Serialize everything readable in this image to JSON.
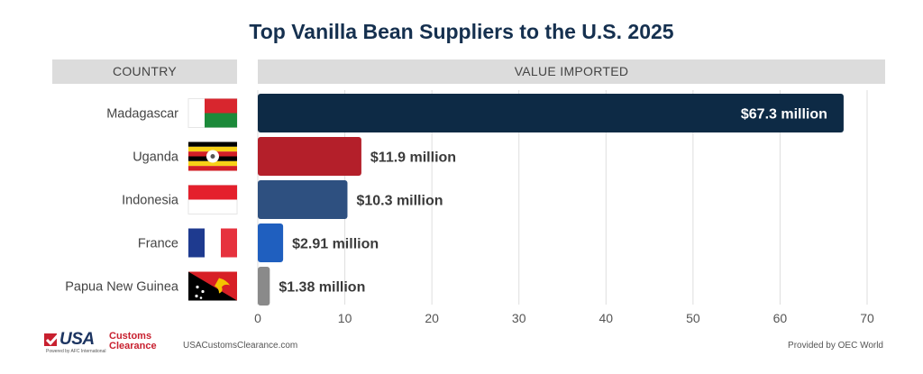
{
  "title": "Top Vanilla Bean Suppliers to the U.S. 2025",
  "headers": {
    "country": "COUNTRY",
    "value": "VALUE IMPORTED"
  },
  "chart_data": {
    "type": "bar",
    "orientation": "horizontal",
    "categories": [
      "Madagascar",
      "Uganda",
      "Indonesia",
      "France",
      "Papua New Guinea"
    ],
    "values": [
      67.3,
      11.9,
      10.3,
      2.91,
      1.38
    ],
    "data_labels": [
      "$67.3 million",
      "$11.9 million",
      "$10.3 million",
      "$2.91 million",
      "$1.38 million"
    ],
    "colors": [
      "#0d2a45",
      "#b41f2a",
      "#2e5080",
      "#1f5fbf",
      "#8a8a8a"
    ],
    "xlim": [
      0,
      70
    ],
    "x_ticks": [
      "0",
      "10",
      "20",
      "30",
      "40",
      "50",
      "60",
      "70"
    ],
    "grid": true,
    "flag_icons": [
      "madagascar-flag-icon",
      "uganda-flag-icon",
      "indonesia-flag-icon",
      "france-flag-icon",
      "papua-new-guinea-flag-icon"
    ]
  },
  "footer": {
    "url": "USACustomsClearance.com",
    "credit": "Provided by OEC World",
    "logo_usa": "USA",
    "logo_customs": "Customs",
    "logo_clearance": "Clearance",
    "logo_tagline": "Powered by AFC International"
  }
}
